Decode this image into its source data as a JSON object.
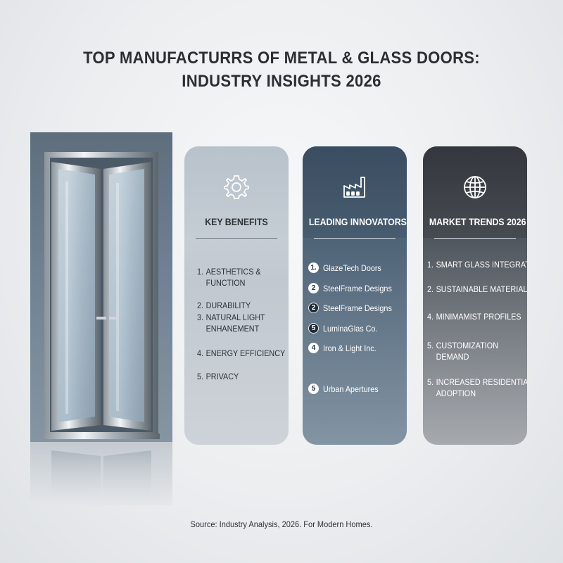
{
  "title": {
    "line1": "TOP MANUFACTURRS OF METAL & GLASS DOORS:",
    "line2": "INDUSTRY INSIGHTS 2026"
  },
  "colors": {
    "card1": "#c5cdd4",
    "card2": "#4a5e72",
    "card3": "#464b51"
  },
  "cards": [
    {
      "icon": "gear-icon",
      "title": "KEY BENEFITS",
      "items": [
        {
          "num": "1.",
          "lines": [
            "AESTHETICS &",
            "FUNCTION"
          ]
        },
        {
          "num": "2.",
          "lines": [
            "DURABILITY"
          ]
        },
        {
          "num": "3.",
          "lines": [
            "NATURAL LIGHT",
            "ENHANEMENT"
          ]
        },
        {
          "num": "4.",
          "lines": [
            "ENERGY EFFICIENCY"
          ]
        },
        {
          "num": "5.",
          "lines": [
            "PRIVACY"
          ]
        }
      ]
    },
    {
      "icon": "factory-icon",
      "title": "LEADING INNOVATORS",
      "items": [
        {
          "badge": "1.",
          "label": "GlazeTech Doors"
        },
        {
          "badge": "2",
          "label": "SteelFrame Designs"
        },
        {
          "badge": "2",
          "label": "SteelFrame Designs"
        },
        {
          "badge": "5",
          "label": "LuminaGlas Co."
        },
        {
          "badge": "4",
          "label": "Iron & Light Inc."
        },
        {
          "badge": "5",
          "label": "Urban Apertures"
        }
      ]
    },
    {
      "icon": "globe-icon",
      "title": "MARKET TRENDS 2026",
      "items": [
        {
          "num": "1.",
          "lines": [
            "SMART GLASS INTEGRATION"
          ]
        },
        {
          "num": "2.",
          "lines": [
            "SUSTAINABLE MATERIALS"
          ]
        },
        {
          "num": "4.",
          "lines": [
            "MINIMAMIST PROFILES"
          ]
        },
        {
          "num": "5.",
          "lines": [
            "CUSTOMIZATION",
            "DEMAND"
          ]
        },
        {
          "num": "5.",
          "lines": [
            "INCREASED RESIDENTIAL",
            "ADOPTION"
          ]
        }
      ]
    }
  ],
  "source": "Source: Industry Analysis, 2026. For Modern Homes."
}
